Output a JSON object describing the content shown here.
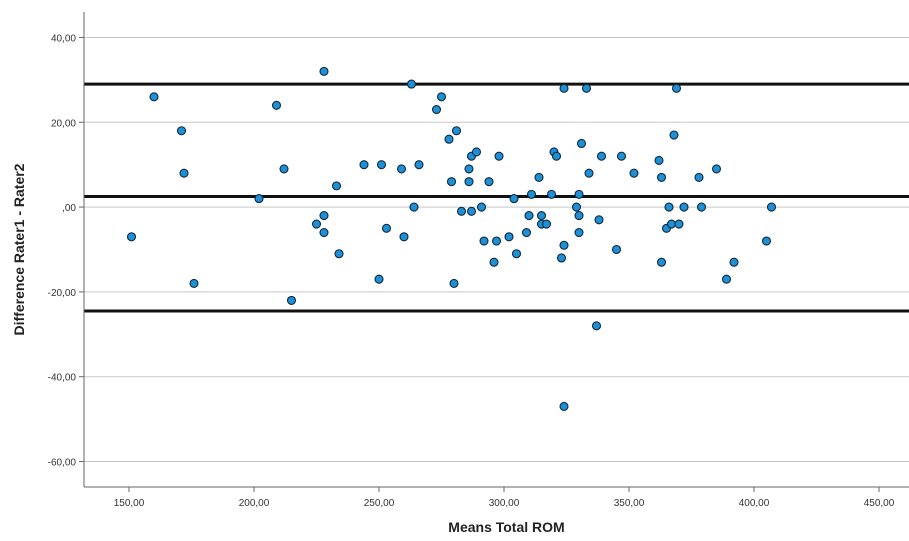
{
  "chart_data": {
    "type": "scatter",
    "title": "",
    "xlabel": "Means Total ROM",
    "ylabel": "Difference Rater1 - Rater2",
    "xlim": [
      132,
      462
    ],
    "ylim": [
      -66,
      46
    ],
    "x_ticks": [
      150,
      200,
      250,
      300,
      350,
      400,
      450
    ],
    "x_tick_labels": [
      "150,00",
      "200,00",
      "250,00",
      "300,00",
      "350,00",
      "400,00",
      "450,00"
    ],
    "y_ticks": [
      40,
      20,
      0,
      -20,
      -40,
      -60
    ],
    "y_tick_labels": [
      "40,00",
      "20,00",
      ",00",
      "-20,00",
      "-40,00",
      "-60,00"
    ],
    "gridlines": "horizontal",
    "reference_lines": [
      29,
      2.5,
      -24.5
    ],
    "point_color": "#1f8fd6",
    "point_edge_color": "#0d2a3d",
    "series": [
      {
        "points": [
          [
            151,
            -7
          ],
          [
            160,
            26
          ],
          [
            171,
            18
          ],
          [
            172,
            8
          ],
          [
            176,
            -18
          ],
          [
            202,
            2
          ],
          [
            209,
            24
          ],
          [
            212,
            9
          ],
          [
            215,
            -22
          ],
          [
            225,
            -4
          ],
          [
            228,
            32
          ],
          [
            228,
            -2
          ],
          [
            228,
            -6
          ],
          [
            233,
            5
          ],
          [
            234,
            -11
          ],
          [
            244,
            10
          ],
          [
            250,
            -17
          ],
          [
            251,
            10
          ],
          [
            253,
            -5
          ],
          [
            259,
            9
          ],
          [
            260,
            -7
          ],
          [
            263,
            29
          ],
          [
            264,
            0
          ],
          [
            266,
            10
          ],
          [
            273,
            23
          ],
          [
            275,
            26
          ],
          [
            278,
            16
          ],
          [
            279,
            6
          ],
          [
            280,
            -18
          ],
          [
            281,
            18
          ],
          [
            283,
            -1
          ],
          [
            286,
            6
          ],
          [
            286,
            9
          ],
          [
            287,
            -1
          ],
          [
            287,
            12
          ],
          [
            289,
            13
          ],
          [
            291,
            0
          ],
          [
            292,
            -8
          ],
          [
            294,
            6
          ],
          [
            296,
            -13
          ],
          [
            297,
            -8
          ],
          [
            298,
            12
          ],
          [
            302,
            -7
          ],
          [
            304,
            2
          ],
          [
            305,
            -11
          ],
          [
            309,
            -6
          ],
          [
            310,
            -2
          ],
          [
            311,
            3
          ],
          [
            314,
            7
          ],
          [
            315,
            -2
          ],
          [
            315,
            -4
          ],
          [
            317,
            -4
          ],
          [
            319,
            3
          ],
          [
            320,
            13
          ],
          [
            321,
            12
          ],
          [
            323,
            -12
          ],
          [
            324,
            -9
          ],
          [
            324,
            28
          ],
          [
            324,
            -47
          ],
          [
            329,
            0
          ],
          [
            330,
            3
          ],
          [
            330,
            -2
          ],
          [
            330,
            -6
          ],
          [
            331,
            15
          ],
          [
            333,
            28
          ],
          [
            334,
            8
          ],
          [
            337,
            -28
          ],
          [
            338,
            -3
          ],
          [
            339,
            12
          ],
          [
            345,
            -10
          ],
          [
            347,
            12
          ],
          [
            352,
            8
          ],
          [
            362,
            11
          ],
          [
            363,
            7
          ],
          [
            363,
            -13
          ],
          [
            365,
            -5
          ],
          [
            366,
            0
          ],
          [
            367,
            -4
          ],
          [
            368,
            17
          ],
          [
            369,
            28
          ],
          [
            370,
            -4
          ],
          [
            372,
            0
          ],
          [
            378,
            7
          ],
          [
            379,
            0
          ],
          [
            385,
            9
          ],
          [
            389,
            -17
          ],
          [
            392,
            -13
          ],
          [
            405,
            -8
          ],
          [
            407,
            0
          ]
        ]
      }
    ]
  }
}
